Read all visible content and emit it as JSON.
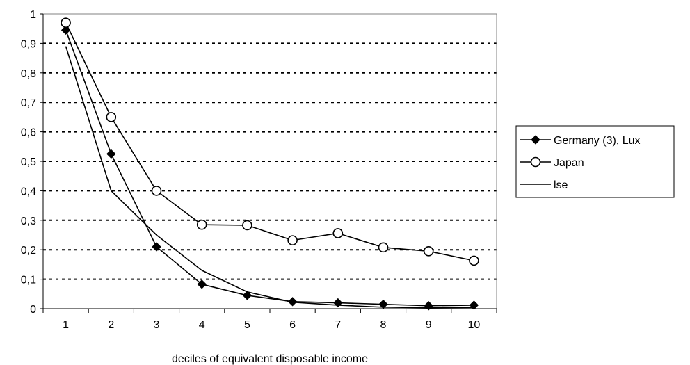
{
  "chart_data": {
    "type": "line",
    "title": "",
    "xlabel": "deciles of equivalent disposable income",
    "ylabel": "",
    "x": [
      1,
      2,
      3,
      4,
      5,
      6,
      7,
      8,
      9,
      10
    ],
    "x_tick_labels": [
      "1",
      "2",
      "3",
      "4",
      "5",
      "6",
      "7",
      "8",
      "9",
      "10"
    ],
    "y_tick_labels": [
      "0",
      "0,1",
      "0,2",
      "0,3",
      "0,4",
      "0,5",
      "0,6",
      "0,7",
      "0,8",
      "0,9",
      "1"
    ],
    "y_ticks": [
      0,
      0.1,
      0.2,
      0.3,
      0.4,
      0.5,
      0.6,
      0.7,
      0.8,
      0.9,
      1
    ],
    "ylim": [
      0,
      1
    ],
    "grid": "horizontal dotted",
    "legend_position": "right",
    "series": [
      {
        "name": "Germany (3), Lux",
        "marker": "filled-diamond",
        "color": "#000000",
        "values": [
          0.945,
          0.525,
          0.21,
          0.083,
          0.045,
          0.024,
          0.02,
          0.015,
          0.01,
          0.012
        ]
      },
      {
        "name": "Japan",
        "marker": "open-circle",
        "color": "#000000",
        "values": [
          0.97,
          0.65,
          0.4,
          0.285,
          0.283,
          0.232,
          0.256,
          0.208,
          0.195,
          0.163
        ]
      },
      {
        "name": "lse",
        "marker": "none",
        "color": "#000000",
        "values": [
          0.89,
          0.4,
          0.25,
          0.13,
          0.057,
          0.022,
          0.012,
          0.005,
          0.003,
          0.004
        ]
      }
    ]
  }
}
